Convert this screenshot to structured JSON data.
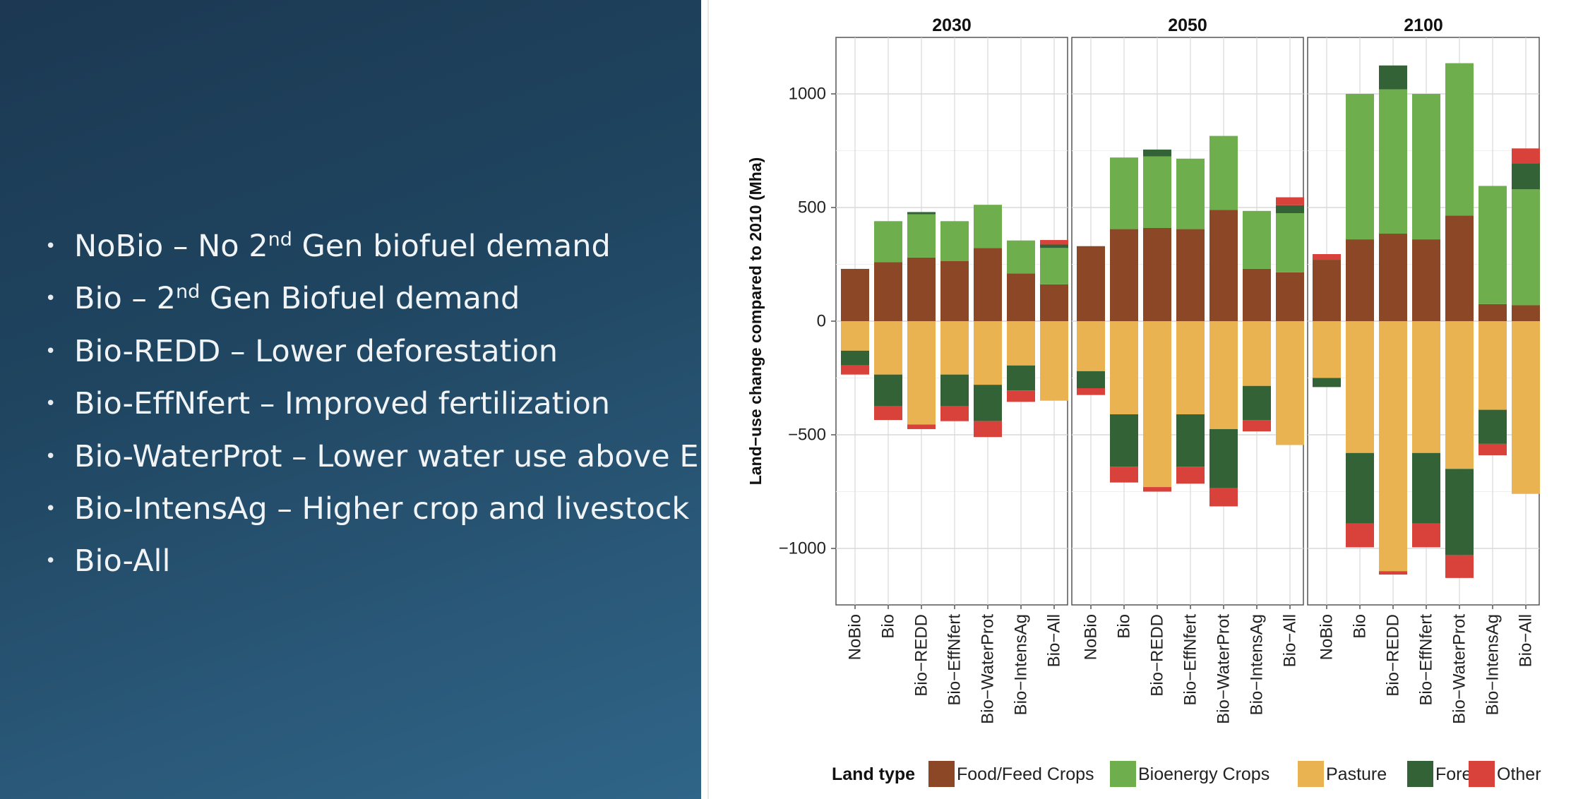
{
  "slide": {
    "bullets": [
      {
        "name": "NoBio",
        "dash": " – No 2",
        "sup": "nd",
        "rest": " Gen biofuel demand"
      },
      {
        "name": "Bio",
        "dash": " – 2",
        "sup": "nd",
        "rest": " Gen Biofuel demand"
      },
      {
        "name": "Bio-REDD",
        "dash": " – Lower deforestation",
        "sup": "",
        "rest": ""
      },
      {
        "name": "Bio-EffNfert",
        "dash": " – Improved fertilization",
        "sup": "",
        "rest": ""
      },
      {
        "name": "Bio-WaterProt",
        "dash": " – Lower water use above EF",
        "sup": "",
        "rest": ""
      },
      {
        "name": "Bio-IntensAg",
        "dash": " – Higher crop and livestock prod",
        "sup": "",
        "rest": ""
      },
      {
        "name": "Bio-All",
        "dash": "",
        "sup": "",
        "rest": ""
      }
    ]
  },
  "chart_data": {
    "type": "bar",
    "stacked": true,
    "facets": [
      "2030",
      "2050",
      "2100"
    ],
    "categories": [
      "NoBio",
      "Bio",
      "Bio−REDD",
      "Bio−EffNfert",
      "Bio−WaterProt",
      "Bio−IntensAg",
      "Bio−All"
    ],
    "ylabel": "Land−use change compared to 2010 (Mha)",
    "ylim": [
      -1250,
      1250
    ],
    "yticks": [
      1000,
      500,
      0,
      -500,
      -1000
    ],
    "ytick_labels": [
      "1000",
      "500",
      "0",
      "−500",
      "−1000"
    ],
    "legend": {
      "title": "Land type",
      "entries": [
        "Food/Feed Crops",
        "Bioenergy Crops",
        "Pasture",
        "Forest",
        "Other"
      ]
    },
    "colors": {
      "Food/Feed Crops": "#8b4726",
      "Bioenergy Crops": "#6fae4c",
      "Pasture": "#e9b352",
      "Forest": "#336236",
      "Other": "#d9423a"
    },
    "series_order_positive": [
      "Food/Feed Crops",
      "Bioenergy Crops",
      "Forest",
      "Other"
    ],
    "series_order_negative": [
      "Pasture",
      "Forest",
      "Other"
    ],
    "series": {
      "2030": {
        "Food/Feed Crops": [
          230,
          260,
          280,
          265,
          322,
          210,
          162
        ],
        "Bioenergy Crops": [
          0,
          180,
          190,
          175,
          190,
          145,
          160
        ],
        "Pasture": [
          -130,
          -235,
          -455,
          -235,
          -280,
          -195,
          -350
        ],
        "Forest": [
          -65,
          -140,
          10,
          -140,
          -160,
          -110,
          15
        ],
        "Other": [
          -40,
          -60,
          -20,
          -65,
          -70,
          -50,
          20
        ]
      },
      "2050": {
        "Food/Feed Crops": [
          330,
          405,
          410,
          405,
          490,
          230,
          215
        ],
        "Bioenergy Crops": [
          0,
          315,
          315,
          310,
          325,
          255,
          260
        ],
        "Pasture": [
          -220,
          -410,
          -730,
          -410,
          -475,
          -285,
          -545
        ],
        "Forest": [
          -75,
          -230,
          30,
          -230,
          -260,
          -150,
          35
        ],
        "Other": [
          -30,
          -70,
          -20,
          -75,
          -80,
          -50,
          35
        ]
      },
      "2100": {
        "Food/Feed Crops": [
          270,
          360,
          385,
          360,
          465,
          75,
          70
        ],
        "Bioenergy Crops": [
          0,
          640,
          635,
          640,
          670,
          520,
          510
        ],
        "Pasture": [
          -250,
          -580,
          -1100,
          -580,
          -650,
          -390,
          -760
        ],
        "Forest": [
          -40,
          -310,
          105,
          -310,
          -380,
          -150,
          115
        ],
        "Other": [
          25,
          -105,
          -15,
          -105,
          -100,
          -50,
          65
        ]
      }
    }
  }
}
